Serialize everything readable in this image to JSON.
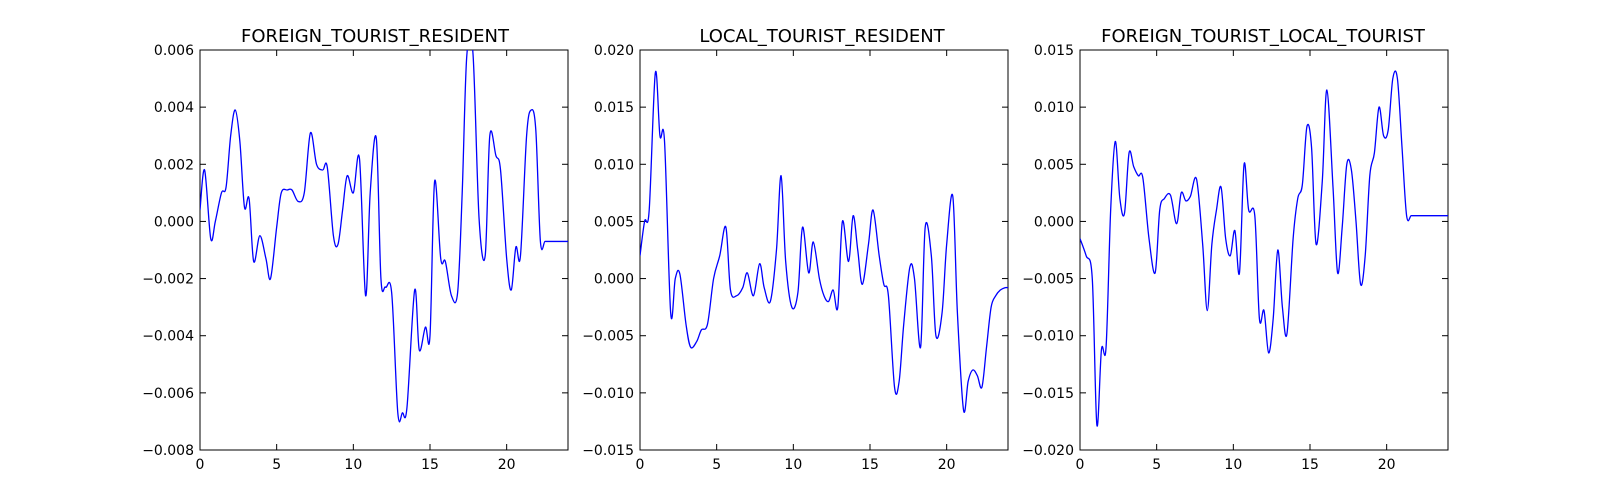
{
  "chart_data": [
    {
      "type": "line",
      "title": "FOREIGN_TOURIST_RESIDENT",
      "xlabel": "",
      "ylabel": "",
      "xlim": [
        0,
        24
      ],
      "ylim": [
        -0.008,
        0.006
      ],
      "xticks": [
        0,
        5,
        10,
        15,
        20
      ],
      "xtick_labels": [
        "0",
        "5",
        "10",
        "15",
        "20"
      ],
      "yticks": [
        -0.008,
        -0.006,
        -0.004,
        -0.002,
        0.0,
        0.002,
        0.004,
        0.006
      ],
      "ytick_labels": [
        "−0.008",
        "−0.006",
        "−0.004",
        "−0.002",
        "0.000",
        "0.002",
        "0.004",
        "0.006"
      ],
      "grid": false,
      "series": [
        {
          "color": "#0000ff",
          "x": [
            0,
            0.3,
            0.7,
            1.0,
            1.4,
            1.7,
            2.0,
            2.3,
            2.6,
            2.9,
            3.2,
            3.5,
            3.9,
            4.3,
            4.6,
            5.0,
            5.3,
            5.7,
            6.0,
            6.4,
            6.8,
            7.2,
            7.6,
            8.0,
            8.3,
            8.7,
            9.0,
            9.3,
            9.6,
            10.0,
            10.4,
            10.8,
            11.1,
            11.5,
            11.8,
            12.1,
            12.5,
            12.9,
            13.2,
            13.5,
            14.0,
            14.3,
            14.7,
            15.0,
            15.3,
            15.7,
            16.0,
            16.4,
            16.8,
            17.1,
            17.4,
            17.8,
            18.2,
            18.6,
            18.9,
            19.3,
            19.6,
            20.0,
            20.3,
            20.6,
            20.9,
            21.3,
            21.6,
            21.9,
            22.2,
            22.5,
            22.8,
            23.1,
            23.4,
            23.7,
            24.0
          ],
          "y": [
            0.0004,
            0.0018,
            -0.0006,
            0.0,
            0.001,
            0.0012,
            0.003,
            0.0039,
            0.0028,
            0.0005,
            0.0008,
            -0.0014,
            -0.0005,
            -0.0013,
            -0.002,
            -0.0002,
            0.001,
            0.0011,
            0.0011,
            0.0007,
            0.001,
            0.0031,
            0.002,
            0.0018,
            0.0019,
            -0.0005,
            -0.0008,
            0.0004,
            0.0016,
            0.001,
            0.0022,
            -0.0026,
            0.001,
            0.0029,
            -0.002,
            -0.0023,
            -0.0025,
            -0.0067,
            -0.0067,
            -0.0065,
            -0.0024,
            -0.0045,
            -0.0037,
            -0.004,
            0.0014,
            -0.0013,
            -0.0014,
            -0.0026,
            -0.0025,
            0.001,
            0.0058,
            0.0059,
            0.0001,
            -0.0012,
            0.003,
            0.0023,
            0.0018,
            -0.0013,
            -0.0024,
            -0.0009,
            -0.0012,
            0.003,
            0.0039,
            0.0032,
            -0.0007,
            -0.0007,
            -0.0007,
            -0.0007,
            -0.0007,
            -0.0007,
            -0.0007
          ]
        }
      ]
    },
    {
      "type": "line",
      "title": "LOCAL_TOURIST_RESIDENT",
      "xlabel": "",
      "ylabel": "",
      "xlim": [
        0,
        24
      ],
      "ylim": [
        -0.015,
        0.02
      ],
      "xticks": [
        0,
        5,
        10,
        15,
        20
      ],
      "xtick_labels": [
        "0",
        "5",
        "10",
        "15",
        "20"
      ],
      "yticks": [
        -0.015,
        -0.01,
        -0.005,
        0.0,
        0.005,
        0.01,
        0.015,
        0.02
      ],
      "ytick_labels": [
        "−0.015",
        "−0.010",
        "−0.005",
        "0.000",
        "0.005",
        "0.010",
        "0.015",
        "0.020"
      ],
      "grid": false,
      "series": [
        {
          "color": "#0000ff",
          "x": [
            0,
            0.3,
            0.6,
            1.0,
            1.3,
            1.6,
            2.0,
            2.3,
            2.6,
            3.0,
            3.3,
            3.7,
            4.0,
            4.4,
            4.8,
            5.2,
            5.6,
            5.9,
            6.3,
            6.7,
            7.0,
            7.4,
            7.8,
            8.1,
            8.5,
            8.9,
            9.2,
            9.5,
            9.9,
            10.3,
            10.6,
            11.0,
            11.3,
            11.7,
            12.0,
            12.3,
            12.6,
            12.9,
            13.2,
            13.6,
            13.9,
            14.2,
            14.5,
            14.9,
            15.2,
            15.6,
            15.9,
            16.2,
            16.6,
            16.9,
            17.2,
            17.6,
            17.9,
            18.3,
            18.6,
            19.0,
            19.3,
            19.7,
            20.0,
            20.4,
            20.7,
            21.1,
            21.4,
            21.7,
            22.0,
            22.3,
            22.6,
            22.9,
            23.2,
            23.5,
            23.8,
            24.0
          ],
          "y": [
            0.002,
            0.005,
            0.006,
            0.018,
            0.0125,
            0.012,
            -0.003,
            0.0,
            0.0004,
            -0.004,
            -0.006,
            -0.0055,
            -0.0045,
            -0.004,
            0.0,
            0.002,
            0.0045,
            -0.001,
            -0.0015,
            -0.0008,
            0.0005,
            -0.0015,
            0.0013,
            -0.0008,
            -0.002,
            0.0025,
            0.009,
            0.0015,
            -0.0025,
            -0.0012,
            0.0045,
            0.0005,
            0.0032,
            0.0,
            -0.0015,
            -0.002,
            -0.001,
            -0.0025,
            0.005,
            0.0015,
            0.0055,
            0.0025,
            -0.0005,
            0.003,
            0.006,
            0.002,
            -0.0005,
            -0.0015,
            -0.0095,
            -0.009,
            -0.004,
            0.001,
            0.0,
            -0.006,
            0.0045,
            0.002,
            -0.005,
            -0.003,
            0.003,
            0.0072,
            -0.003,
            -0.0115,
            -0.009,
            -0.008,
            -0.0085,
            -0.0095,
            -0.006,
            -0.0025,
            -0.0015,
            -0.001,
            -0.0008,
            -0.0008
          ]
        }
      ]
    },
    {
      "type": "line",
      "title": "FOREIGN_TOURIST_LOCAL_TOURIST",
      "xlabel": "",
      "ylabel": "",
      "xlim": [
        0,
        24
      ],
      "ylim": [
        -0.02,
        0.015
      ],
      "xticks": [
        0,
        5,
        10,
        15,
        20
      ],
      "xtick_labels": [
        "0",
        "5",
        "10",
        "15",
        "20"
      ],
      "yticks": [
        -0.02,
        -0.015,
        -0.01,
        -0.005,
        0.0,
        0.005,
        0.01,
        0.015
      ],
      "ytick_labels": [
        "−0.020",
        "−0.015",
        "−0.010",
        "−0.005",
        "0.000",
        "0.005",
        "0.010",
        "0.015"
      ],
      "grid": false,
      "series": [
        {
          "color": "#0000ff",
          "x": [
            0,
            0.4,
            0.8,
            1.1,
            1.4,
            1.7,
            2.0,
            2.3,
            2.6,
            2.9,
            3.2,
            3.5,
            3.8,
            4.1,
            4.5,
            4.9,
            5.2,
            5.5,
            5.9,
            6.3,
            6.6,
            6.9,
            7.2,
            7.6,
            8.0,
            8.3,
            8.6,
            8.9,
            9.2,
            9.5,
            9.8,
            10.1,
            10.4,
            10.7,
            11.0,
            11.4,
            11.7,
            12.0,
            12.3,
            12.6,
            12.9,
            13.2,
            13.5,
            13.9,
            14.2,
            14.5,
            14.8,
            15.1,
            15.4,
            15.8,
            16.1,
            16.5,
            16.8,
            17.1,
            17.4,
            17.7,
            18.0,
            18.3,
            18.6,
            18.9,
            19.2,
            19.5,
            19.8,
            20.1,
            20.4,
            20.7,
            21.0,
            21.3,
            21.6,
            21.9,
            22.2,
            22.5,
            22.8,
            23.1,
            23.4,
            23.7,
            24.0
          ],
          "y": [
            -0.0015,
            -0.003,
            -0.005,
            -0.0178,
            -0.0112,
            -0.011,
            0.001,
            0.007,
            0.002,
            0.0007,
            0.006,
            0.0048,
            0.004,
            0.0038,
            -0.0015,
            -0.0045,
            0.001,
            0.002,
            0.0023,
            -0.0002,
            0.0025,
            0.0018,
            0.0022,
            0.0037,
            -0.002,
            -0.0078,
            -0.002,
            0.001,
            0.003,
            -0.0015,
            -0.003,
            -0.0008,
            -0.0045,
            0.005,
            0.001,
            0.0005,
            -0.0085,
            -0.0078,
            -0.0115,
            -0.0085,
            -0.0025,
            -0.0075,
            -0.0098,
            -0.0015,
            0.002,
            0.0032,
            0.0083,
            0.0065,
            -0.002,
            0.0035,
            0.0115,
            0.003,
            -0.0045,
            -0.0005,
            0.005,
            0.0045,
            0.0,
            -0.0055,
            -0.003,
            0.004,
            0.006,
            0.01,
            0.0075,
            0.008,
            0.0125,
            0.0125,
            0.0065,
            0.0005,
            0.0005,
            0.0005,
            0.0005,
            0.0005,
            0.0005,
            0.0005,
            0.0005,
            0.0005,
            0.0005
          ]
        }
      ]
    }
  ]
}
